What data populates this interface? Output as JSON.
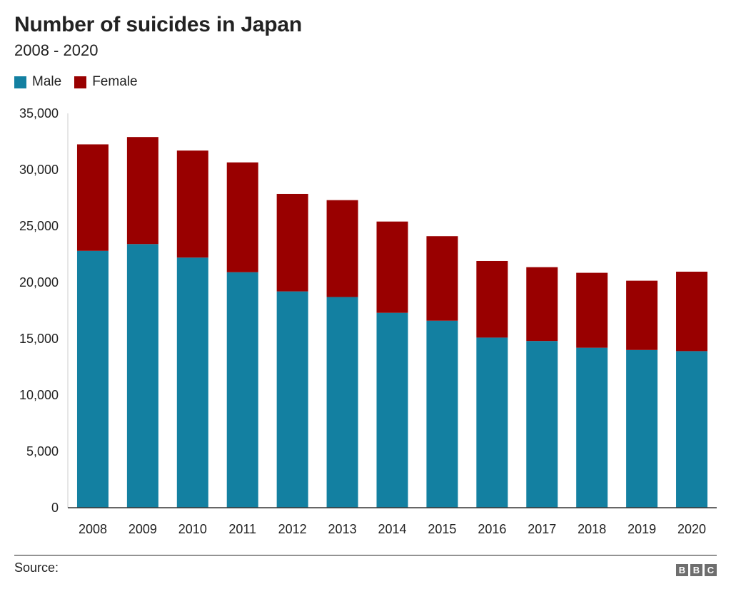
{
  "chart_data": {
    "type": "bar",
    "stacked": true,
    "title": "Number of suicides in Japan",
    "subtitle": "2008 - 2020",
    "categories": [
      "2008",
      "2009",
      "2010",
      "2011",
      "2012",
      "2013",
      "2014",
      "2015",
      "2016",
      "2017",
      "2018",
      "2019",
      "2020"
    ],
    "series": [
      {
        "name": "Male",
        "color": "#1380a1",
        "values": [
          22800,
          23400,
          22200,
          20900,
          19200,
          18700,
          17300,
          16600,
          15100,
          14800,
          14200,
          14000,
          13900
        ]
      },
      {
        "name": "Female",
        "color": "#990000",
        "values": [
          9450,
          9500,
          9500,
          9750,
          8650,
          8600,
          8100,
          7500,
          6800,
          6550,
          6650,
          6150,
          7050
        ]
      }
    ],
    "ylim": [
      0,
      35000
    ],
    "yticks": [
      0,
      5000,
      10000,
      15000,
      20000,
      25000,
      30000,
      35000
    ],
    "ytick_labels": [
      "0",
      "5,000",
      "10,000",
      "15,000",
      "20,000",
      "25,000",
      "30,000",
      "35,000"
    ],
    "xlabel": "",
    "ylabel": "",
    "grid": false,
    "legend_position": "top-left"
  },
  "footer": {
    "source_label": "Source:",
    "logo_letters": [
      "B",
      "B",
      "C"
    ]
  }
}
